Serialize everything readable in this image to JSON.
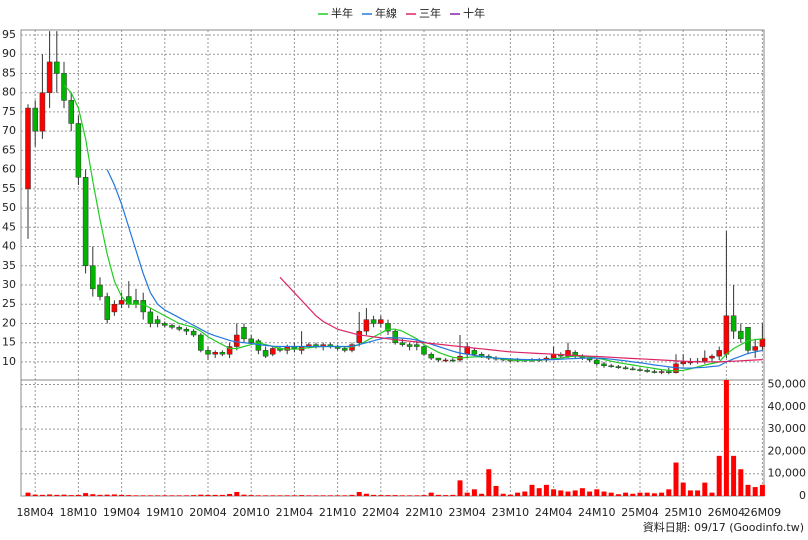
{
  "chart_data": {
    "type": "candlestick",
    "categories": [
      null,
      "18M04",
      null,
      null,
      null,
      null,
      null,
      "18M10",
      null,
      null,
      null,
      null,
      null,
      "19M04",
      null,
      null,
      null,
      null,
      null,
      "19M10",
      null,
      null,
      null,
      null,
      null,
      "20M04",
      null,
      null,
      null,
      null,
      null,
      "20M10",
      null,
      null,
      null,
      null,
      null,
      "21M04",
      null,
      null,
      null,
      null,
      null,
      "21M10",
      null,
      null,
      null,
      null,
      null,
      "22M04",
      null,
      null,
      null,
      null,
      null,
      "22M10",
      null,
      null,
      null,
      null,
      null,
      "23M04",
      null,
      null,
      null,
      null,
      null,
      "23M10",
      null,
      null,
      null,
      null,
      null,
      "24M04",
      null,
      null,
      null,
      null,
      null,
      "24M10",
      null,
      null,
      null,
      null,
      null,
      "25M04",
      null,
      null,
      null,
      null,
      null,
      "25M10",
      null,
      null,
      null,
      null,
      null,
      "26M04",
      null,
      null,
      null,
      null,
      "26M09"
    ],
    "open": [
      55,
      76,
      70,
      80,
      88,
      85,
      78,
      72,
      58,
      35,
      30,
      27,
      23,
      25,
      27,
      26,
      26,
      23,
      21,
      20,
      19.5,
      19,
      18.5,
      18,
      17,
      13,
      12,
      12.5,
      12,
      14,
      19,
      16,
      15.5,
      13,
      12,
      13.5,
      13,
      14,
      13,
      14,
      14.5,
      14,
      14.5,
      14,
      13.5,
      13,
      15,
      18,
      21,
      20,
      20,
      18,
      15,
      14.5,
      14.5,
      14,
      12,
      11,
      10.5,
      10.5,
      10.5,
      12,
      13,
      12,
      11.5,
      11,
      10.8,
      10.5,
      10.5,
      10.3,
      10.5,
      10.4,
      10.5,
      11,
      12,
      11.5,
      12.5,
      11.5,
      11,
      10.5,
      9.5,
      9,
      8.8,
      8.5,
      8.2,
      8,
      7.8,
      7.5,
      7.3,
      7.5,
      7.2,
      9.5,
      10,
      10,
      10.2,
      11,
      11.5,
      12,
      22,
      18,
      19,
      13,
      14
    ],
    "high": [
      77,
      78,
      90,
      96,
      96,
      88,
      80,
      74,
      60,
      40,
      32,
      28,
      26,
      28,
      31,
      29,
      28,
      24,
      22,
      20.5,
      20,
      19.5,
      19,
      18.5,
      17.5,
      14,
      13,
      13,
      15,
      20,
      20,
      17,
      16,
      14,
      14,
      14,
      14.5,
      15,
      18,
      15,
      15,
      15,
      15,
      14.5,
      14,
      15,
      23,
      24,
      22,
      22,
      21,
      18.5,
      16,
      15,
      15.5,
      14.5,
      12.5,
      11,
      11,
      11,
      17,
      15,
      13.5,
      12.5,
      12,
      11.5,
      11,
      11,
      11,
      10.8,
      11,
      11,
      11.5,
      14,
      12.5,
      15,
      13,
      12,
      11.5,
      11,
      10,
      9.5,
      9.2,
      9,
      8.8,
      8.5,
      8.3,
      8,
      8,
      8.5,
      12,
      12,
      11,
      11,
      13,
      12,
      14,
      44,
      30,
      20,
      19,
      16,
      20
    ],
    "low": [
      42,
      66,
      68,
      76,
      80,
      76,
      70,
      56,
      33,
      27,
      26,
      20,
      22,
      24,
      24,
      24,
      21,
      19,
      19,
      19,
      18.5,
      18,
      17,
      16.5,
      12.5,
      10.5,
      11,
      11.5,
      11,
      13,
      15,
      14.5,
      12,
      11,
      11.5,
      12.5,
      12,
      12.5,
      12,
      13.5,
      13.5,
      13,
      13.5,
      13,
      12.5,
      12.5,
      14,
      17,
      19,
      19,
      17,
      14.5,
      14,
      13,
      13,
      11.5,
      10.5,
      10,
      10,
      10,
      10,
      11,
      11.5,
      11,
      10.5,
      10.3,
      10.2,
      10,
      10,
      10,
      10,
      10,
      10,
      10.5,
      11,
      11,
      11,
      10.5,
      10,
      9,
      8.5,
      8.5,
      8.2,
      8,
      7.8,
      7.5,
      7.2,
      7,
      6.8,
      6.8,
      7,
      9,
      9.2,
      9.5,
      9.5,
      10,
      10.5,
      11,
      16,
      15,
      12,
      11,
      13
    ],
    "close": [
      76,
      70,
      80,
      88,
      85,
      78,
      72,
      58,
      35,
      29,
      27,
      21,
      25,
      26,
      25,
      25,
      23,
      20,
      20,
      19.5,
      19,
      18.5,
      18,
      17,
      13,
      12,
      12.5,
      12,
      14,
      17,
      16,
      15,
      13,
      11.5,
      13.5,
      13,
      14,
      13.5,
      14,
      14.5,
      14,
      14.5,
      14,
      13.5,
      13,
      14.5,
      18,
      21,
      20,
      21,
      18,
      15,
      14.5,
      14,
      14,
      12,
      11,
      10.5,
      10.5,
      10.3,
      11.5,
      14,
      12,
      11.5,
      11,
      10.8,
      10.5,
      10.5,
      10.3,
      10.5,
      10.4,
      10.6,
      11,
      12,
      11.5,
      13,
      11.5,
      11,
      10.5,
      9.5,
      9,
      8.8,
      8.5,
      8.2,
      8,
      7.8,
      7.5,
      7.3,
      7.5,
      7.2,
      9.5,
      10,
      10,
      10.2,
      11,
      11.5,
      13,
      22,
      18,
      16,
      13,
      14,
      16
    ],
    "up_color": "#ff0000",
    "down_color": "#00b400",
    "ylim": [
      5.3,
      96.3
    ],
    "yticks": [
      10,
      15,
      20,
      25,
      30,
      35,
      40,
      45,
      50,
      55,
      60,
      65,
      70,
      75,
      80,
      85,
      90,
      95
    ],
    "volume": {
      "axis": "y2",
      "color": "#ff0000",
      "values": [
        1500,
        600,
        500,
        700,
        500,
        600,
        400,
        500,
        1300,
        800,
        500,
        600,
        700,
        500,
        400,
        300,
        300,
        300,
        300,
        300,
        300,
        300,
        300,
        400,
        600,
        500,
        500,
        500,
        900,
        1800,
        600,
        400,
        300,
        300,
        300,
        300,
        300,
        300,
        400,
        300,
        300,
        300,
        300,
        300,
        300,
        500,
        1800,
        1000,
        500,
        400,
        400,
        400,
        300,
        300,
        300,
        400,
        1500,
        500,
        400,
        500,
        7000,
        1500,
        3000,
        1000,
        12000,
        4500,
        1000,
        600,
        1500,
        2000,
        5000,
        3500,
        5000,
        3000,
        2500,
        2000,
        2500,
        3500,
        2000,
        3000,
        2000,
        1500,
        800,
        1500,
        1000,
        1500,
        1500,
        1200,
        1500,
        3000,
        15000,
        6000,
        2500,
        2500,
        6000,
        1500,
        18000,
        52000,
        18000,
        12000,
        5000,
        4000,
        5000
      ]
    },
    "y2lim": [
      0,
      52000
    ],
    "y2ticks": [
      0,
      {
        "value": 10000,
        "label": "10,000"
      },
      {
        "value": 20000,
        "label": "20,000"
      },
      {
        "value": 30000,
        "label": "30,000"
      },
      {
        "value": 40000,
        "label": "40,000"
      },
      {
        "value": 50000,
        "label": "50,000"
      }
    ],
    "lines": [
      {
        "name": "半年",
        "color": "#22cc22",
        "values": [
          null,
          null,
          null,
          null,
          null,
          82,
          80,
          76,
          68,
          57,
          47,
          38,
          31,
          27,
          25,
          25,
          25,
          24,
          23,
          22,
          21,
          20,
          19.5,
          19,
          18,
          16.5,
          15.5,
          14.5,
          13.5,
          13.5,
          14,
          14.5,
          15,
          14.5,
          14,
          13.5,
          13.3,
          13.3,
          13.5,
          13.7,
          13.9,
          14,
          14,
          14,
          13.9,
          13.9,
          14.5,
          15.5,
          16.5,
          17.5,
          18.5,
          18.5,
          18,
          17,
          16,
          14.5,
          13.5,
          12.5,
          11.8,
          11.2,
          11,
          11.2,
          11.3,
          11.3,
          11.2,
          11,
          10.7,
          10.5,
          10.4,
          10.4,
          10.4,
          10.5,
          10.6,
          10.8,
          11,
          11.3,
          11.5,
          11.5,
          11.3,
          11,
          10.6,
          10.2,
          9.8,
          9.5,
          9.2,
          8.9,
          8.6,
          8.3,
          8,
          7.8,
          7.7,
          7.8,
          8.2,
          8.7,
          9.2,
          9.6,
          10,
          12,
          13.5,
          14.5,
          15.5,
          15.8,
          16
        ]
      },
      {
        "name": "年線",
        "color": "#2277dd",
        "values": [
          null,
          null,
          null,
          null,
          null,
          null,
          null,
          null,
          null,
          null,
          null,
          60,
          56,
          51,
          45,
          39,
          33,
          28,
          25,
          23.5,
          22.5,
          21.5,
          20.5,
          19.5,
          18.5,
          17.5,
          16.8,
          16.2,
          15.6,
          15.2,
          15,
          14.8,
          14.5,
          14.3,
          14.1,
          14,
          14,
          14,
          14,
          14,
          14,
          14,
          14,
          14,
          14,
          14.1,
          14.5,
          15,
          15.5,
          16,
          16.3,
          16.3,
          16.2,
          16,
          15.7,
          15.2,
          14.6,
          14,
          13.4,
          12.8,
          12.3,
          12,
          11.7,
          11.4,
          11.2,
          11,
          10.9,
          10.8,
          10.7,
          10.6,
          10.6,
          10.6,
          10.6,
          10.6,
          10.7,
          10.8,
          10.9,
          11,
          11,
          11,
          10.9,
          10.7,
          10.5,
          10.3,
          10,
          9.8,
          9.5,
          9.2,
          9,
          8.7,
          8.5,
          8.4,
          8.4,
          8.5,
          8.6,
          8.8,
          9,
          10,
          10.8,
          11.5,
          12.2,
          12.6,
          13
        ]
      },
      {
        "name": "三年",
        "color": "#dd2266",
        "values": [
          null,
          null,
          null,
          null,
          null,
          null,
          null,
          null,
          null,
          null,
          null,
          null,
          null,
          null,
          null,
          null,
          null,
          null,
          null,
          null,
          null,
          null,
          null,
          null,
          null,
          null,
          null,
          null,
          null,
          null,
          null,
          null,
          null,
          null,
          null,
          32,
          30,
          28,
          26,
          24,
          22,
          20.5,
          19.5,
          18.5,
          18,
          17.5,
          17,
          16.8,
          16.5,
          16.3,
          16,
          15.8,
          15.6,
          15.4,
          15.2,
          15,
          14.8,
          14.6,
          14.4,
          14.2,
          14,
          13.8,
          13.6,
          13.4,
          13.2,
          13,
          12.8,
          12.6,
          12.5,
          12.4,
          12.3,
          12.2,
          12.1,
          12,
          11.9,
          11.8,
          11.7,
          11.6,
          11.5,
          11.4,
          11.3,
          11.2,
          11.1,
          11,
          10.9,
          10.8,
          10.7,
          10.6,
          10.5,
          10.4,
          10.3,
          10.2,
          10.1,
          10,
          10,
          10,
          10,
          10.1,
          10.2,
          10.3,
          10.4,
          10.5,
          10.6
        ]
      },
      {
        "name": "十年",
        "color": "#8822aa",
        "values": [
          null,
          null,
          null,
          null,
          null,
          null,
          null,
          null,
          null,
          null,
          null,
          null,
          null,
          null,
          null,
          null,
          null,
          null,
          null,
          null,
          null,
          null,
          null,
          null,
          null,
          null,
          null,
          null,
          null,
          null,
          null,
          null,
          null,
          null,
          null,
          null,
          null,
          null,
          null,
          null,
          null,
          null,
          null,
          null,
          null,
          null,
          null,
          null,
          null,
          null,
          null,
          null,
          null,
          null,
          null,
          null,
          null,
          null,
          null,
          null,
          null,
          null,
          null,
          null,
          null,
          null,
          null,
          null,
          null,
          null,
          null,
          null,
          null,
          null,
          null,
          null,
          null,
          null,
          null,
          null,
          null,
          null,
          null,
          null,
          null,
          null,
          null,
          null,
          null,
          null,
          null,
          null,
          null,
          null,
          null,
          null,
          null,
          null,
          null,
          null,
          null,
          null,
          null
        ]
      }
    ],
    "grid": true,
    "footer": "資料日期: 09/17 (Goodinfo.tw)"
  }
}
